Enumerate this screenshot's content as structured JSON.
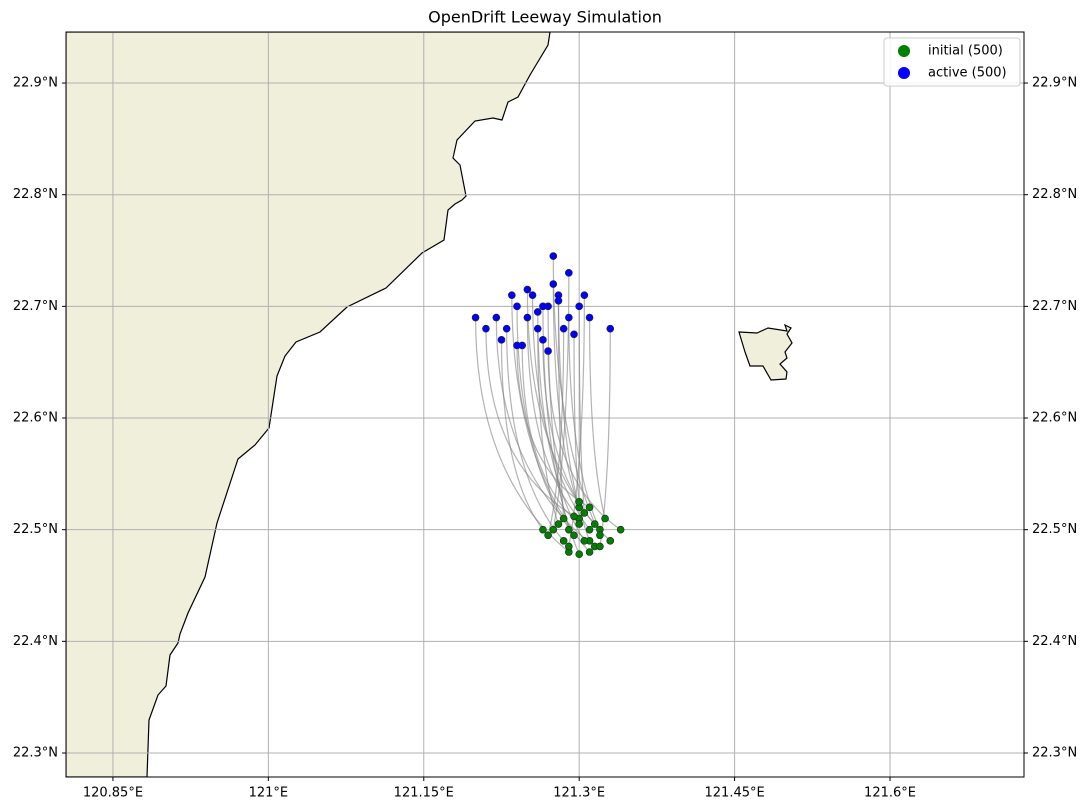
{
  "chart_data": {
    "type": "scatter",
    "title": "OpenDrift Leeway Simulation",
    "xlim": [
      120.8047,
      121.7293
    ],
    "ylim": [
      22.2785,
      22.9457
    ],
    "xticks": [
      {
        "value": 120.85,
        "label": "120.85°E"
      },
      {
        "value": 121.0,
        "label": "121°E"
      },
      {
        "value": 121.15,
        "label": "121.15°E"
      },
      {
        "value": 121.3,
        "label": "121.3°E"
      },
      {
        "value": 121.45,
        "label": "121.45°E"
      },
      {
        "value": 121.6,
        "label": "121.6°E"
      }
    ],
    "yticks": [
      {
        "value": 22.3,
        "label": "22.3°N"
      },
      {
        "value": 22.4,
        "label": "22.4°N"
      },
      {
        "value": 22.5,
        "label": "22.5°N"
      },
      {
        "value": 22.6,
        "label": "22.6°N"
      },
      {
        "value": 22.7,
        "label": "22.7°N"
      },
      {
        "value": 22.8,
        "label": "22.8°N"
      },
      {
        "value": 22.9,
        "label": "22.9°N"
      }
    ],
    "grid": true,
    "legend": "upper right",
    "series": [
      {
        "name": "initial (500)",
        "color": "#008000",
        "x": [
          121.29,
          121.3,
          121.31,
          121.32,
          121.28,
          121.295,
          121.305,
          121.315,
          121.285,
          121.3,
          121.31,
          121.27,
          121.33,
          121.325,
          121.29,
          121.3,
          121.275,
          121.31,
          121.32,
          121.295,
          121.305,
          121.285,
          121.3,
          121.315,
          121.34,
          121.265,
          121.29,
          121.31,
          121.3,
          121.32
        ],
        "values": [
          22.5,
          22.51,
          22.49,
          22.5,
          22.505,
          22.495,
          22.515,
          22.485,
          22.49,
          22.52,
          22.5,
          22.495,
          22.49,
          22.51,
          22.48,
          22.505,
          22.5,
          22.48,
          22.495,
          22.512,
          22.49,
          22.51,
          22.525,
          22.505,
          22.5,
          22.5,
          22.485,
          22.52,
          22.478,
          22.485
        ]
      },
      {
        "name": "active (500)",
        "color": "#0000ff",
        "x": [
          121.27,
          121.25,
          121.28,
          121.29,
          121.26,
          121.24,
          121.3,
          121.22,
          121.23,
          121.275,
          121.255,
          121.285,
          121.265,
          121.31,
          121.2,
          121.245,
          121.29,
          121.235,
          121.275,
          121.21,
          121.26,
          121.28,
          121.295,
          121.25,
          121.27,
          121.225,
          121.305,
          121.24,
          121.265,
          121.33
        ],
        "values": [
          22.7,
          22.69,
          22.71,
          22.69,
          22.68,
          22.7,
          22.7,
          22.69,
          22.68,
          22.72,
          22.71,
          22.68,
          22.67,
          22.69,
          22.69,
          22.665,
          22.73,
          22.71,
          22.745,
          22.68,
          22.695,
          22.705,
          22.675,
          22.715,
          22.66,
          22.67,
          22.71,
          22.665,
          22.7,
          22.68
        ]
      }
    ]
  }
}
